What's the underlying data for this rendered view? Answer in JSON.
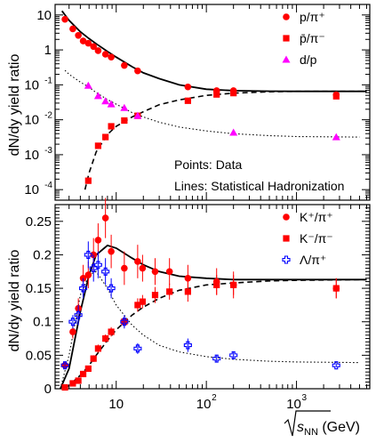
{
  "chart_data": [
    {
      "type": "scatter",
      "xscale": "log",
      "yscale": "log",
      "xlim": [
        2.1,
        6500
      ],
      "ylim": [
        5e-05,
        20
      ],
      "ylabel": "dN/dy yield ratio",
      "yticks": [
        {
          "value": 10,
          "label": "10"
        },
        {
          "value": 1,
          "label": "1"
        },
        {
          "value": 0.1,
          "label": "10",
          "exp": "-1"
        },
        {
          "value": 0.01,
          "label": "10",
          "exp": "-2"
        },
        {
          "value": 0.001,
          "label": "10",
          "exp": "-3"
        },
        {
          "value": 0.0001,
          "label": "10",
          "exp": "-4"
        }
      ],
      "annotations": [
        "Points: Data",
        "Lines: Statistical Hadronization"
      ],
      "legend_position": "top-right",
      "series": [
        {
          "name": "p/π⁺",
          "marker": "circle",
          "color": "#ff0000",
          "x": [
            2.7,
            3.3,
            3.8,
            4.3,
            4.9,
            5.6,
            6.3,
            7.6,
            8.8,
            12.3,
            17.3,
            62.4,
            130,
            200,
            2760
          ],
          "y": [
            7.5,
            4.0,
            2.6,
            1.8,
            1.55,
            1.25,
            0.95,
            0.75,
            0.62,
            0.36,
            0.25,
            0.087,
            0.068,
            0.068,
            0.052
          ]
        },
        {
          "name": "p̄/π⁻",
          "marker": "square",
          "color": "#ff0000",
          "x": [
            4.9,
            6.3,
            7.6,
            8.8,
            12.3,
            17.3,
            62.4,
            130,
            200,
            2760
          ],
          "y": [
            0.00018,
            0.0018,
            0.0032,
            0.0065,
            0.0095,
            0.013,
            0.035,
            0.053,
            0.058,
            0.047
          ]
        },
        {
          "name": "d/p",
          "marker": "triangle",
          "color": "#ff00ff",
          "x": [
            4.9,
            6.3,
            7.6,
            8.8,
            12.3,
            17.3,
            200,
            2760
          ],
          "y": [
            0.095,
            0.048,
            0.034,
            0.028,
            0.022,
            0.013,
            0.0043,
            0.0032
          ]
        }
      ],
      "curves": [
        {
          "style": "solid",
          "x": [
            2.5,
            3,
            4,
            5,
            6,
            8,
            10,
            15,
            20,
            30,
            50,
            100,
            200,
            500,
            1000,
            6000
          ],
          "y": [
            13,
            7,
            3.3,
            2.1,
            1.5,
            0.9,
            0.62,
            0.33,
            0.22,
            0.15,
            0.1,
            0.075,
            0.068,
            0.066,
            0.065,
            0.065
          ]
        },
        {
          "style": "dashed",
          "x": [
            4.5,
            5,
            6,
            8,
            10,
            15,
            20,
            30,
            50,
            100,
            200,
            500,
            1000,
            6000
          ],
          "y": [
            0.0001,
            0.0003,
            0.0012,
            0.0038,
            0.0065,
            0.012,
            0.017,
            0.027,
            0.037,
            0.05,
            0.058,
            0.063,
            0.065,
            0.065
          ]
        },
        {
          "style": "dotted",
          "x": [
            2.7,
            3,
            4,
            5,
            6,
            8,
            10,
            15,
            20,
            30,
            50,
            100,
            200,
            500,
            1000,
            5000
          ],
          "y": [
            0.26,
            0.2,
            0.12,
            0.085,
            0.06,
            0.038,
            0.028,
            0.016,
            0.012,
            0.0085,
            0.0062,
            0.0048,
            0.004,
            0.0035,
            0.0033,
            0.0032
          ]
        }
      ]
    },
    {
      "type": "scatter",
      "xscale": "log",
      "yscale": "linear",
      "xlim": [
        2.1,
        6500
      ],
      "ylim": [
        0,
        0.275
      ],
      "xlabel": "√s_NN (GeV)",
      "ylabel": "dN/dy yield ratio",
      "yticks": [
        {
          "value": 0,
          "label": "0"
        },
        {
          "value": 0.05,
          "label": "0.05"
        },
        {
          "value": 0.1,
          "label": "0.1"
        },
        {
          "value": 0.15,
          "label": "0.15"
        },
        {
          "value": 0.2,
          "label": "0.2"
        },
        {
          "value": 0.25,
          "label": "0.25"
        }
      ],
      "xticks": [
        {
          "value": 10,
          "label": "10"
        },
        {
          "value": 100,
          "label": "10",
          "exp": "2"
        },
        {
          "value": 1000,
          "label": "10",
          "exp": "3"
        }
      ],
      "legend_position": "top-right",
      "series": [
        {
          "name": "K⁺/π⁺",
          "marker": "circle",
          "color": "#ff0000",
          "x": [
            2.7,
            3.3,
            3.8,
            4.3,
            4.9,
            5.6,
            6.3,
            7.6,
            8.8,
            12.3,
            17.3,
            19.6,
            27,
            39,
            62.4,
            130,
            200,
            2760
          ],
          "y": [
            0.035,
            0.085,
            0.12,
            0.165,
            0.17,
            0.2,
            0.222,
            0.255,
            0.205,
            0.18,
            0.19,
            0.18,
            0.175,
            0.175,
            0.165,
            0.16,
            0.155,
            0.15
          ],
          "err": [
            0.005,
            0.01,
            0.015,
            0.02,
            0.02,
            0.025,
            0.025,
            0.03,
            0.025,
            0.025,
            0.025,
            0.02,
            0.02,
            0.02,
            0.02,
            0.02,
            0.02,
            0.015
          ]
        },
        {
          "name": "K⁻/π⁻",
          "marker": "square",
          "color": "#ff0000",
          "x": [
            2.7,
            3.3,
            3.8,
            4.3,
            4.9,
            5.6,
            6.3,
            7.6,
            8.8,
            12.3,
            17.3,
            19.6,
            27,
            39,
            62.4,
            130,
            200,
            2760
          ],
          "y": [
            0.002,
            0.008,
            0.012,
            0.022,
            0.03,
            0.045,
            0.06,
            0.075,
            0.085,
            0.1,
            0.125,
            0.13,
            0.14,
            0.145,
            0.145,
            0.155,
            0.155,
            0.15
          ],
          "err": [
            0.001,
            0.002,
            0.002,
            0.003,
            0.004,
            0.005,
            0.006,
            0.006,
            0.007,
            0.008,
            0.01,
            0.01,
            0.012,
            0.012,
            0.015,
            0.015,
            0.015,
            0.015
          ]
        },
        {
          "name": "Λ/π⁺",
          "marker": "open-cross",
          "color": "#0000ff",
          "x": [
            2.7,
            3.3,
            3.8,
            4.3,
            4.9,
            5.6,
            6.3,
            7.6,
            8.8,
            12.3,
            17.3,
            62.4,
            130,
            200,
            2760
          ],
          "y": [
            0.035,
            0.1,
            0.11,
            0.15,
            0.2,
            0.18,
            0.185,
            0.175,
            0.15,
            0.1,
            0.06,
            0.065,
            0.045,
            0.05,
            0.035
          ],
          "err": [
            0.005,
            0.01,
            0.015,
            0.015,
            0.02,
            0.02,
            0.02,
            0.02,
            0.015,
            0.01,
            0.008,
            0.01,
            0.005,
            0.005,
            0.003
          ]
        }
      ],
      "curves": [
        {
          "style": "solid",
          "x": [
            2.4,
            3,
            4,
            5,
            6,
            8,
            10,
            15,
            20,
            30,
            50,
            100,
            200,
            500,
            1000,
            6000
          ],
          "y": [
            0,
            0.03,
            0.115,
            0.17,
            0.2,
            0.214,
            0.21,
            0.195,
            0.185,
            0.175,
            0.168,
            0.165,
            0.163,
            0.163,
            0.163,
            0.163
          ]
        },
        {
          "style": "dashed",
          "x": [
            2.7,
            3,
            4,
            5,
            6,
            8,
            10,
            15,
            20,
            30,
            50,
            100,
            200,
            500,
            1000,
            6000
          ],
          "y": [
            0,
            0.005,
            0.02,
            0.035,
            0.05,
            0.072,
            0.088,
            0.11,
            0.122,
            0.135,
            0.147,
            0.155,
            0.158,
            0.161,
            0.162,
            0.163
          ]
        },
        {
          "style": "dotted",
          "x": [
            2.4,
            3,
            4,
            5,
            6,
            8,
            10,
            15,
            20,
            30,
            50,
            100,
            200,
            500,
            1000,
            5000
          ],
          "y": [
            0,
            0.05,
            0.14,
            0.17,
            0.175,
            0.15,
            0.125,
            0.095,
            0.08,
            0.065,
            0.055,
            0.048,
            0.044,
            0.041,
            0.04,
            0.039
          ]
        }
      ]
    }
  ]
}
